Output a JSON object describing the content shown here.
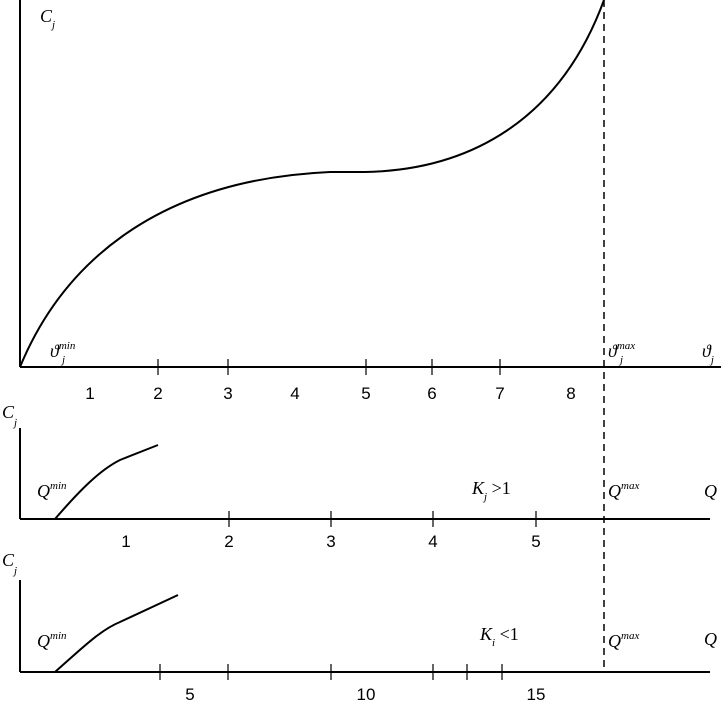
{
  "top": {
    "y_label": {
      "base": "C",
      "sub": "j"
    },
    "min_label": {
      "base": "ϑ",
      "sub": "j",
      "sup": "min"
    },
    "max_label": {
      "base": "ϑ",
      "sub": "j",
      "sup": "max"
    },
    "x_label": {
      "base": "ϑ",
      "sub": "j"
    },
    "ticks": [
      "1",
      "2",
      "3",
      "4",
      "5",
      "6",
      "7",
      "8"
    ]
  },
  "middle": {
    "y_label": {
      "base": "C",
      "sub": "j"
    },
    "min_label": {
      "base": "Q",
      "sup": "min"
    },
    "condition": {
      "base": "K",
      "sub": "j",
      "rest": " >1"
    },
    "max_label": {
      "base": "Q",
      "sup": "max"
    },
    "x_label": "Q",
    "ticks": [
      "1",
      "2",
      "3",
      "4",
      "5"
    ]
  },
  "bottom": {
    "y_label": {
      "base": "C",
      "sub": "j"
    },
    "min_label": {
      "base": "Q",
      "sup": "min"
    },
    "condition": {
      "base": "K",
      "sub": "i",
      "rest": " <1"
    },
    "max_label": {
      "base": "Q",
      "sup": "max"
    },
    "x_label": "Q",
    "ticks": [
      "5",
      "10",
      "15"
    ]
  }
}
